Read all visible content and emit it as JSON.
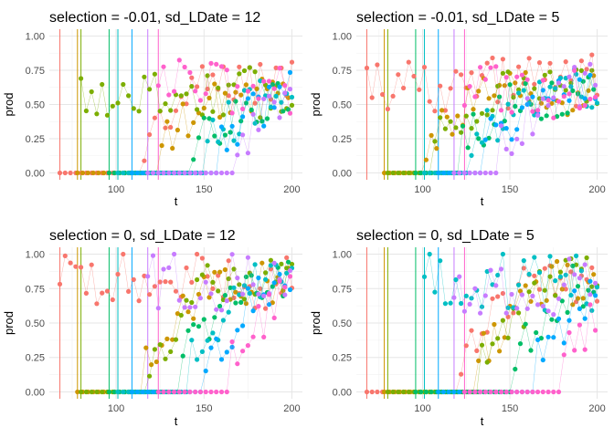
{
  "chart_data": [
    {
      "type": "scatter",
      "title": "selection = -0.01, sd_LDate = 12",
      "xlabel": "t",
      "ylabel": "prod",
      "xlim": [
        62,
        206
      ],
      "ylim": [
        -0.05,
        1.05
      ],
      "xticks": [
        "100",
        "150",
        "200"
      ],
      "yticks": [
        "0.00",
        "0.25",
        "0.50",
        "0.75",
        "1.00"
      ],
      "grid": true,
      "series_count": 8,
      "start_lines": [
        68,
        78,
        80,
        96,
        101,
        109,
        118,
        124
      ],
      "plateau_means": [
        0.66,
        0.56,
        0.58,
        0.53,
        0.57,
        0.6,
        0.63,
        0.62
      ],
      "early_high": [
        2,
        7
      ]
    },
    {
      "type": "scatter",
      "title": "selection = -0.01, sd_LDate = 5",
      "xlabel": "t",
      "ylabel": "prod",
      "xlim": [
        62,
        206
      ],
      "ylim": [
        -0.05,
        1.05
      ],
      "xticks": [
        "100",
        "150",
        "200"
      ],
      "yticks": [
        "0.00",
        "0.25",
        "0.50",
        "0.75",
        "1.00"
      ],
      "grid": true,
      "series_count": 8,
      "start_lines": [
        68,
        78,
        80,
        96,
        101,
        109,
        118,
        124
      ],
      "plateau_means": [
        0.66,
        0.58,
        0.6,
        0.55,
        0.57,
        0.62,
        0.64,
        0.6
      ],
      "early_high": [
        0,
        7
      ]
    },
    {
      "type": "scatter",
      "title": "selection = 0, sd_LDate = 12",
      "xlabel": "t",
      "ylabel": "prod",
      "xlim": [
        62,
        206
      ],
      "ylim": [
        -0.05,
        1.05
      ],
      "xticks": [
        "100",
        "150",
        "200"
      ],
      "yticks": [
        "0.00",
        "0.25",
        "0.50",
        "0.75",
        "1.00"
      ],
      "grid": true,
      "series_count": 8,
      "start_lines": [
        68,
        78,
        80,
        96,
        101,
        109,
        118,
        124
      ],
      "plateau_means": [
        0.8,
        0.78,
        0.82,
        0.79,
        0.81,
        0.77,
        0.8,
        0.83
      ],
      "early_high": [
        0,
        6
      ]
    },
    {
      "type": "scatter",
      "title": "selection = 0, sd_LDate = 5",
      "xlabel": "t",
      "ylabel": "prod",
      "xlim": [
        62,
        206
      ],
      "ylim": [
        -0.05,
        1.05
      ],
      "xticks": [
        "100",
        "150",
        "200"
      ],
      "yticks": [
        "0.00",
        "0.25",
        "0.50",
        "0.75",
        "1.00"
      ],
      "grid": true,
      "series_count": 8,
      "start_lines": [
        68,
        78,
        80,
        96,
        101,
        109,
        118,
        124
      ],
      "plateau_means": [
        0.8,
        0.79,
        0.82,
        0.78,
        0.8,
        0.81,
        0.77,
        0.83
      ],
      "early_high": [
        4,
        6
      ]
    }
  ],
  "palette": [
    "#F8766D",
    "#CD9600",
    "#7CAE00",
    "#00BE67",
    "#00BFC4",
    "#00A9FF",
    "#C77CFF",
    "#FF61CC"
  ]
}
